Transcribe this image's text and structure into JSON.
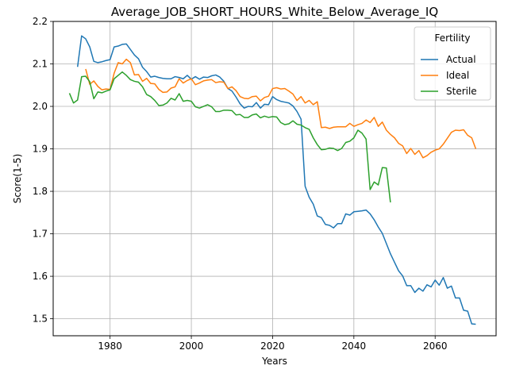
{
  "chart_data": {
    "type": "line",
    "title": "Average_JOB_SHORT_HOURS_White_Below_Average_IQ",
    "xlabel": "Years",
    "ylabel": "Score(1-5)",
    "xlim": [
      1966,
      2075
    ],
    "ylim": [
      1.46,
      2.2
    ],
    "xticks": [
      1980,
      2000,
      2020,
      2040,
      2060
    ],
    "yticks": [
      1.5,
      1.6,
      1.7,
      1.8,
      1.9,
      2.0,
      2.1,
      2.2
    ],
    "grid": true,
    "legend": {
      "title": "Fertility",
      "placement": "top-right"
    },
    "series": [
      {
        "name": "Actual",
        "color": "#1f77b4",
        "points": [
          [
            1972,
            2.093
          ],
          [
            1973,
            2.166
          ],
          [
            1974,
            2.159
          ],
          [
            1975,
            2.14
          ],
          [
            1976,
            2.106
          ],
          [
            1977,
            2.103
          ],
          [
            1978,
            2.105
          ],
          [
            1979,
            2.108
          ],
          [
            1980,
            2.11
          ],
          [
            1981,
            2.14
          ],
          [
            1982,
            2.142
          ],
          [
            1983,
            2.146
          ],
          [
            1984,
            2.147
          ],
          [
            1985,
            2.134
          ],
          [
            1986,
            2.121
          ],
          [
            1987,
            2.112
          ],
          [
            1988,
            2.092
          ],
          [
            1989,
            2.082
          ],
          [
            1990,
            2.069
          ],
          [
            1991,
            2.071
          ],
          [
            1992,
            2.068
          ],
          [
            1993,
            2.066
          ],
          [
            1994,
            2.065
          ],
          [
            1995,
            2.065
          ],
          [
            1996,
            2.07
          ],
          [
            1997,
            2.068
          ],
          [
            1998,
            2.065
          ],
          [
            1999,
            2.073
          ],
          [
            2000,
            2.064
          ],
          [
            2001,
            2.07
          ],
          [
            2002,
            2.064
          ],
          [
            2003,
            2.069
          ],
          [
            2004,
            2.068
          ],
          [
            2005,
            2.072
          ],
          [
            2006,
            2.074
          ],
          [
            2007,
            2.069
          ],
          [
            2008,
            2.059
          ],
          [
            2009,
            2.042
          ],
          [
            2010,
            2.036
          ],
          [
            2011,
            2.022
          ],
          [
            2012,
            2.006
          ],
          [
            2013,
            1.996
          ],
          [
            2014,
            2.0
          ],
          [
            2015,
            1.999
          ],
          [
            2016,
            2.009
          ],
          [
            2017,
            1.996
          ],
          [
            2018,
            2.005
          ],
          [
            2019,
            2.004
          ],
          [
            2020,
            2.023
          ],
          [
            2021,
            2.016
          ],
          [
            2022,
            2.012
          ],
          [
            2023,
            2.01
          ],
          [
            2024,
            2.008
          ],
          [
            2025,
            2.001
          ],
          [
            2026,
            1.988
          ],
          [
            2027,
            1.97
          ],
          [
            2028,
            1.812
          ],
          [
            2029,
            1.786
          ],
          [
            2030,
            1.77
          ],
          [
            2031,
            1.742
          ],
          [
            2032,
            1.738
          ],
          [
            2033,
            1.722
          ],
          [
            2034,
            1.72
          ],
          [
            2035,
            1.714
          ],
          [
            2036,
            1.724
          ],
          [
            2037,
            1.724
          ],
          [
            2038,
            1.747
          ],
          [
            2039,
            1.744
          ],
          [
            2040,
            1.752
          ],
          [
            2041,
            1.753
          ],
          [
            2042,
            1.754
          ],
          [
            2043,
            1.756
          ],
          [
            2044,
            1.747
          ],
          [
            2045,
            1.733
          ],
          [
            2046,
            1.716
          ],
          [
            2047,
            1.701
          ],
          [
            2048,
            1.677
          ],
          [
            2049,
            1.653
          ],
          [
            2050,
            1.633
          ],
          [
            2051,
            1.613
          ],
          [
            2052,
            1.601
          ],
          [
            2053,
            1.578
          ],
          [
            2054,
            1.578
          ],
          [
            2055,
            1.562
          ],
          [
            2056,
            1.572
          ],
          [
            2057,
            1.565
          ],
          [
            2058,
            1.58
          ],
          [
            2059,
            1.575
          ],
          [
            2060,
            1.591
          ],
          [
            2061,
            1.579
          ],
          [
            2062,
            1.597
          ],
          [
            2063,
            1.572
          ],
          [
            2064,
            1.577
          ],
          [
            2065,
            1.549
          ],
          [
            2066,
            1.549
          ],
          [
            2067,
            1.52
          ],
          [
            2068,
            1.518
          ],
          [
            2069,
            1.488
          ],
          [
            2070,
            1.487
          ]
        ]
      },
      {
        "name": "Ideal",
        "color": "#ff7f0e",
        "points": [
          [
            1974,
            2.088
          ],
          [
            1975,
            2.052
          ],
          [
            1976,
            2.06
          ],
          [
            1977,
            2.047
          ],
          [
            1978,
            2.039
          ],
          [
            1979,
            2.041
          ],
          [
            1980,
            2.04
          ],
          [
            1981,
            2.078
          ],
          [
            1982,
            2.103
          ],
          [
            1983,
            2.1
          ],
          [
            1984,
            2.111
          ],
          [
            1985,
            2.103
          ],
          [
            1986,
            2.074
          ],
          [
            1987,
            2.075
          ],
          [
            1988,
            2.059
          ],
          [
            1989,
            2.066
          ],
          [
            1990,
            2.054
          ],
          [
            1991,
            2.053
          ],
          [
            1992,
            2.04
          ],
          [
            1993,
            2.033
          ],
          [
            1994,
            2.034
          ],
          [
            1995,
            2.043
          ],
          [
            1996,
            2.046
          ],
          [
            1997,
            2.065
          ],
          [
            1998,
            2.055
          ],
          [
            1999,
            2.061
          ],
          [
            2000,
            2.065
          ],
          [
            2001,
            2.051
          ],
          [
            2002,
            2.055
          ],
          [
            2003,
            2.06
          ],
          [
            2004,
            2.062
          ],
          [
            2005,
            2.063
          ],
          [
            2006,
            2.056
          ],
          [
            2007,
            2.058
          ],
          [
            2008,
            2.057
          ],
          [
            2009,
            2.042
          ],
          [
            2010,
            2.046
          ],
          [
            2011,
            2.037
          ],
          [
            2012,
            2.023
          ],
          [
            2013,
            2.019
          ],
          [
            2014,
            2.018
          ],
          [
            2015,
            2.023
          ],
          [
            2016,
            2.024
          ],
          [
            2017,
            2.013
          ],
          [
            2018,
            2.021
          ],
          [
            2019,
            2.024
          ],
          [
            2020,
            2.042
          ],
          [
            2021,
            2.044
          ],
          [
            2022,
            2.041
          ],
          [
            2023,
            2.042
          ],
          [
            2024,
            2.036
          ],
          [
            2025,
            2.029
          ],
          [
            2026,
            2.014
          ],
          [
            2027,
            2.023
          ],
          [
            2028,
            2.008
          ],
          [
            2029,
            2.014
          ],
          [
            2030,
            2.004
          ],
          [
            2031,
            2.011
          ],
          [
            2032,
            1.95
          ],
          [
            2033,
            1.951
          ],
          [
            2034,
            1.948
          ],
          [
            2035,
            1.951
          ],
          [
            2036,
            1.952
          ],
          [
            2037,
            1.952
          ],
          [
            2038,
            1.952
          ],
          [
            2039,
            1.96
          ],
          [
            2040,
            1.953
          ],
          [
            2041,
            1.957
          ],
          [
            2042,
            1.96
          ],
          [
            2043,
            1.968
          ],
          [
            2044,
            1.962
          ],
          [
            2045,
            1.974
          ],
          [
            2046,
            1.953
          ],
          [
            2047,
            1.963
          ],
          [
            2048,
            1.944
          ],
          [
            2049,
            1.934
          ],
          [
            2050,
            1.926
          ],
          [
            2051,
            1.913
          ],
          [
            2052,
            1.907
          ],
          [
            2053,
            1.889
          ],
          [
            2054,
            1.901
          ],
          [
            2055,
            1.887
          ],
          [
            2056,
            1.896
          ],
          [
            2057,
            1.879
          ],
          [
            2058,
            1.884
          ],
          [
            2059,
            1.892
          ],
          [
            2060,
            1.897
          ],
          [
            2061,
            1.9
          ],
          [
            2062,
            1.911
          ],
          [
            2063,
            1.925
          ],
          [
            2064,
            1.939
          ],
          [
            2065,
            1.944
          ],
          [
            2066,
            1.943
          ],
          [
            2067,
            1.945
          ],
          [
            2068,
            1.932
          ],
          [
            2069,
            1.926
          ],
          [
            2070,
            1.9
          ]
        ]
      },
      {
        "name": "Sterile",
        "color": "#2ca02c",
        "points": [
          [
            1970,
            2.031
          ],
          [
            1971,
            2.008
          ],
          [
            1972,
            2.015
          ],
          [
            1973,
            2.07
          ],
          [
            1974,
            2.071
          ],
          [
            1975,
            2.058
          ],
          [
            1976,
            2.018
          ],
          [
            1977,
            2.034
          ],
          [
            1978,
            2.032
          ],
          [
            1979,
            2.036
          ],
          [
            1980,
            2.039
          ],
          [
            1981,
            2.065
          ],
          [
            1982,
            2.073
          ],
          [
            1983,
            2.081
          ],
          [
            1984,
            2.073
          ],
          [
            1985,
            2.063
          ],
          [
            1986,
            2.059
          ],
          [
            1987,
            2.057
          ],
          [
            1988,
            2.046
          ],
          [
            1989,
            2.028
          ],
          [
            1990,
            2.023
          ],
          [
            1991,
            2.014
          ],
          [
            1992,
            2.002
          ],
          [
            1993,
            2.003
          ],
          [
            1994,
            2.008
          ],
          [
            1995,
            2.019
          ],
          [
            1996,
            2.015
          ],
          [
            1997,
            2.03
          ],
          [
            1998,
            2.012
          ],
          [
            1999,
            2.014
          ],
          [
            2000,
            2.012
          ],
          [
            2001,
            1.999
          ],
          [
            2002,
            1.996
          ],
          [
            2003,
            2.0
          ],
          [
            2004,
            2.004
          ],
          [
            2005,
            1.999
          ],
          [
            2006,
            1.988
          ],
          [
            2007,
            1.988
          ],
          [
            2008,
            1.991
          ],
          [
            2009,
            1.991
          ],
          [
            2010,
            1.99
          ],
          [
            2011,
            1.98
          ],
          [
            2012,
            1.981
          ],
          [
            2013,
            1.974
          ],
          [
            2014,
            1.974
          ],
          [
            2015,
            1.98
          ],
          [
            2016,
            1.982
          ],
          [
            2017,
            1.973
          ],
          [
            2018,
            1.977
          ],
          [
            2019,
            1.974
          ],
          [
            2020,
            1.976
          ],
          [
            2021,
            1.975
          ],
          [
            2022,
            1.962
          ],
          [
            2023,
            1.957
          ],
          [
            2024,
            1.959
          ],
          [
            2025,
            1.966
          ],
          [
            2026,
            1.958
          ],
          [
            2027,
            1.956
          ],
          [
            2028,
            1.95
          ],
          [
            2029,
            1.946
          ],
          [
            2030,
            1.926
          ],
          [
            2031,
            1.91
          ],
          [
            2032,
            1.898
          ],
          [
            2033,
            1.899
          ],
          [
            2034,
            1.902
          ],
          [
            2035,
            1.901
          ],
          [
            2036,
            1.896
          ],
          [
            2037,
            1.901
          ],
          [
            2038,
            1.915
          ],
          [
            2039,
            1.918
          ],
          [
            2040,
            1.926
          ],
          [
            2041,
            1.944
          ],
          [
            2042,
            1.937
          ],
          [
            2043,
            1.923
          ],
          [
            2044,
            1.804
          ],
          [
            2045,
            1.822
          ],
          [
            2046,
            1.815
          ],
          [
            2047,
            1.856
          ],
          [
            2048,
            1.855
          ],
          [
            2049,
            1.774
          ]
        ]
      }
    ]
  }
}
